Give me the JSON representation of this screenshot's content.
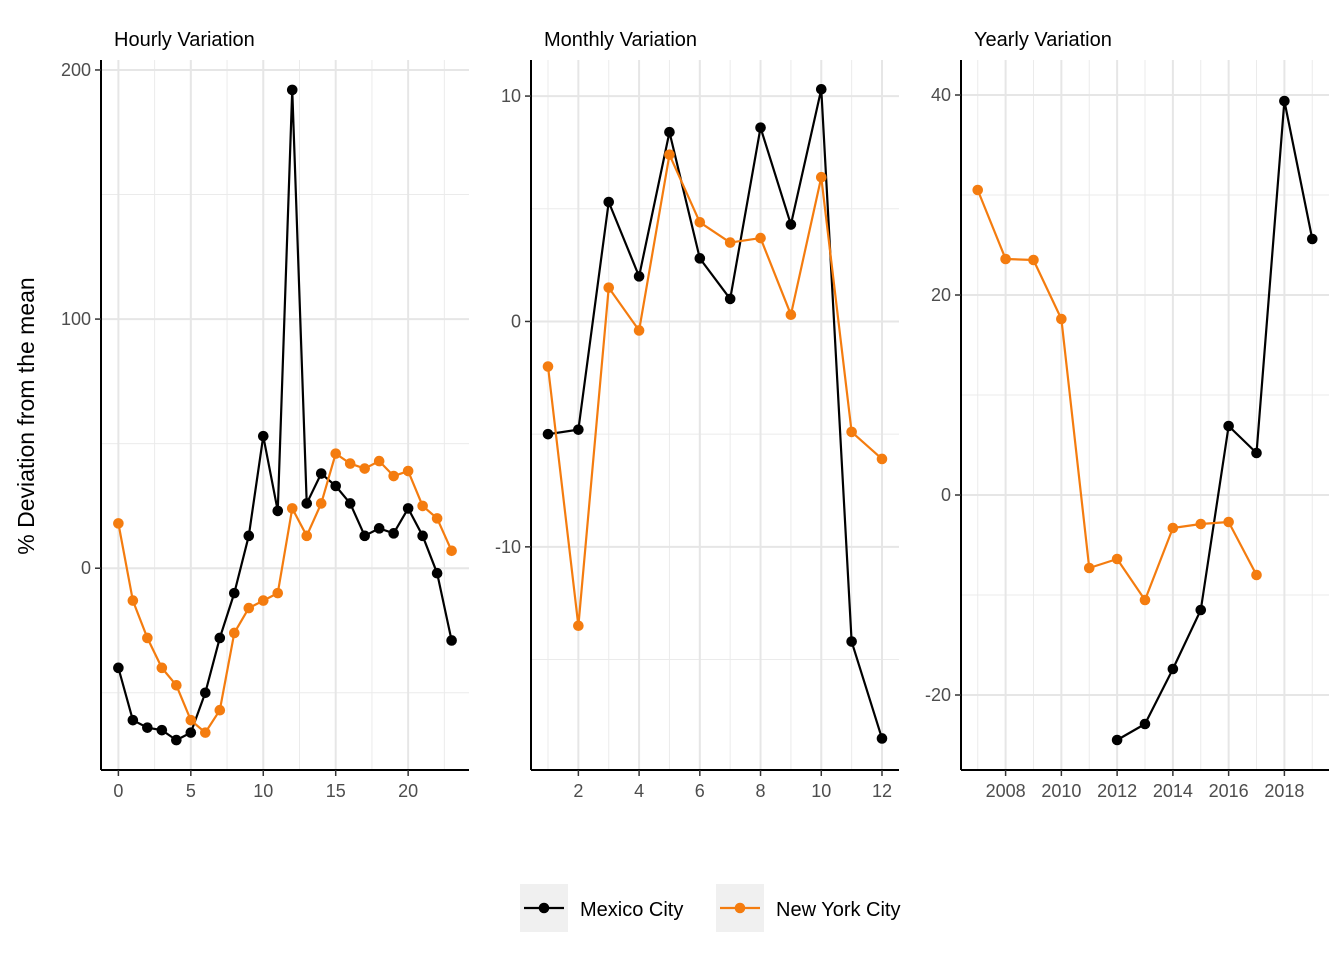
{
  "ylabel": "% Deviation from the mean",
  "legend": [
    {
      "name": "Mexico City",
      "color": "#000000"
    },
    {
      "name": "New York City",
      "color": "#f47c0f"
    }
  ],
  "chart_data": [
    {
      "type": "line",
      "title": "Hourly Variation",
      "xlabel": "",
      "ylabel": "% Deviation from the mean",
      "xlim": [
        -1.2,
        24.2
      ],
      "ylim": [
        -81,
        204
      ],
      "xticks": [
        0,
        5,
        10,
        15,
        20
      ],
      "yticks": [
        0,
        100,
        200
      ],
      "yminor": [
        50,
        150,
        -50
      ],
      "series": [
        {
          "name": "Mexico City",
          "x": [
            0,
            1,
            2,
            3,
            4,
            5,
            6,
            7,
            8,
            9,
            10,
            11,
            12,
            13,
            14,
            15,
            16,
            17,
            18,
            19,
            20,
            21,
            22,
            23
          ],
          "y": [
            -40,
            -61,
            -64,
            -65,
            -69,
            -66,
            -50,
            -28,
            -10,
            13,
            53,
            23,
            192,
            26,
            38,
            33,
            26,
            13,
            16,
            14,
            24,
            13,
            -2,
            -29
          ]
        },
        {
          "name": "New York City",
          "x": [
            0,
            1,
            2,
            3,
            4,
            5,
            6,
            7,
            8,
            9,
            10,
            11,
            12,
            13,
            14,
            15,
            16,
            17,
            18,
            19,
            20,
            21,
            22,
            23
          ],
          "y": [
            18,
            -13,
            -28,
            -40,
            -47,
            -61,
            -66,
            -57,
            -26,
            -16,
            -13,
            -10,
            24,
            13,
            26,
            46,
            42,
            40,
            43,
            37,
            39,
            25,
            20,
            7
          ]
        }
      ]
    },
    {
      "type": "line",
      "title": "Monthly Variation",
      "xlabel": "",
      "ylabel": "",
      "xlim": [
        0.44,
        12.56
      ],
      "ylim": [
        -19.9,
        11.6
      ],
      "xticks": [
        2,
        4,
        6,
        8,
        10,
        12
      ],
      "yticks": [
        -10,
        0,
        10
      ],
      "yminor": [
        -15,
        -5,
        5
      ],
      "series": [
        {
          "name": "Mexico City",
          "x": [
            1,
            2,
            3,
            4,
            5,
            6,
            7,
            8,
            9,
            10,
            11,
            12
          ],
          "y": [
            -5.0,
            -4.8,
            5.3,
            2.0,
            8.4,
            2.8,
            1.0,
            8.6,
            4.3,
            10.3,
            -14.2,
            -18.5
          ]
        },
        {
          "name": "New York City",
          "x": [
            1,
            2,
            3,
            4,
            5,
            6,
            7,
            8,
            9,
            10,
            11,
            12
          ],
          "y": [
            -2.0,
            -13.5,
            1.5,
            -0.4,
            7.4,
            4.4,
            3.5,
            3.7,
            0.3,
            6.4,
            -4.9,
            -6.1
          ]
        }
      ]
    },
    {
      "type": "line",
      "title": "Yearly Variation",
      "xlabel": "",
      "ylabel": "",
      "xlim": [
        2006.4,
        2019.6
      ],
      "ylim": [
        -27.5,
        43.5
      ],
      "xticks": [
        2008,
        2010,
        2012,
        2014,
        2016,
        2018
      ],
      "yticks": [
        -20,
        0,
        20,
        40
      ],
      "yminor": [
        -10,
        10,
        30
      ],
      "series": [
        {
          "name": "Mexico City",
          "x": [
            2012,
            2013,
            2014,
            2015,
            2016,
            2017,
            2018,
            2019
          ],
          "y": [
            -24.5,
            -22.9,
            -17.4,
            -11.5,
            6.9,
            4.2,
            39.4,
            25.6
          ]
        },
        {
          "name": "New York City",
          "x": [
            2007,
            2008,
            2009,
            2010,
            2011,
            2012,
            2013,
            2014,
            2015,
            2016,
            2017
          ],
          "y": [
            30.5,
            23.6,
            23.5,
            17.6,
            -7.3,
            -6.4,
            -10.5,
            -3.3,
            -2.9,
            -2.7,
            -8.0
          ]
        }
      ]
    }
  ]
}
